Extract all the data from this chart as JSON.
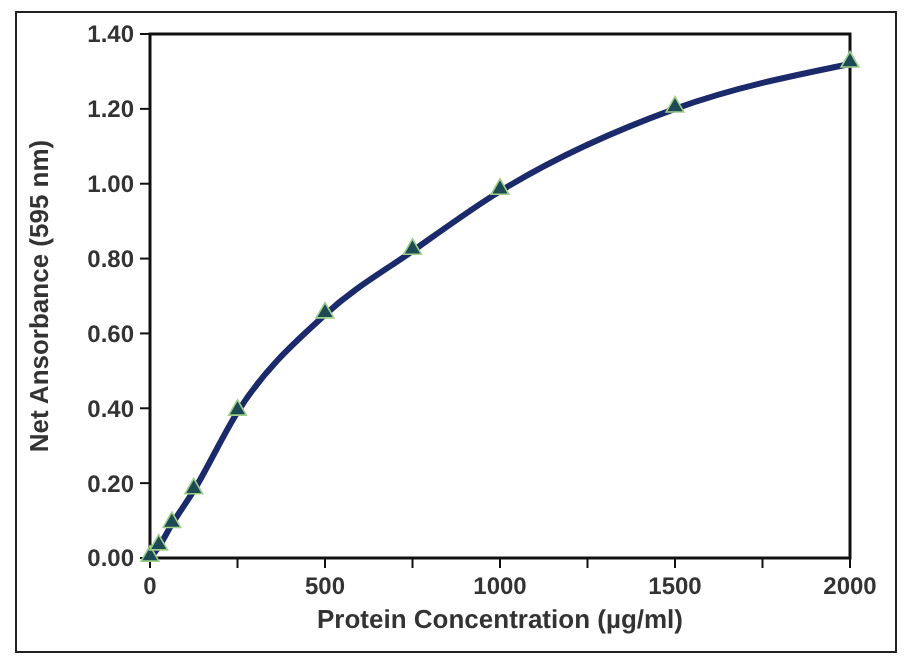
{
  "chart_data": {
    "type": "line",
    "xlabel": "Protein Concentration  (µg/ml)",
    "ylabel": "Net Ansorbance  (595 nm)",
    "x": [
      0,
      25,
      62.5,
      125,
      250,
      500,
      750,
      1000,
      1500,
      2000
    ],
    "series": [
      {
        "color": "#1b2a6b",
        "values": [
          0,
          0.03,
          0.09,
          0.18,
          0.39,
          0.65,
          0.82,
          0.98,
          1.2,
          1.32
        ]
      }
    ],
    "xlim": [
      0,
      2000
    ],
    "xticks": [
      0,
      {
        "value": 250,
        "label": null
      },
      500,
      {
        "value": 750,
        "label": null
      },
      1000,
      {
        "value": 1250,
        "label": null
      },
      1500,
      {
        "value": 1750,
        "label": null
      },
      2000
    ],
    "ylim": [
      0,
      1.4
    ],
    "yticks": [
      {
        "value": 0,
        "label": "0.00"
      },
      {
        "value": 0.2,
        "label": "0.20"
      },
      {
        "value": 0.4,
        "label": "0.40"
      },
      {
        "value": 0.6,
        "label": "0.60"
      },
      {
        "value": 0.8,
        "label": "0.80"
      },
      {
        "value": 1,
        "label": "1.00"
      },
      {
        "value": 1.2,
        "label": "1.20"
      },
      {
        "value": 1.4,
        "label": "1.40"
      }
    ],
    "marker": "triangle",
    "line_style": "solid",
    "grid": false
  }
}
